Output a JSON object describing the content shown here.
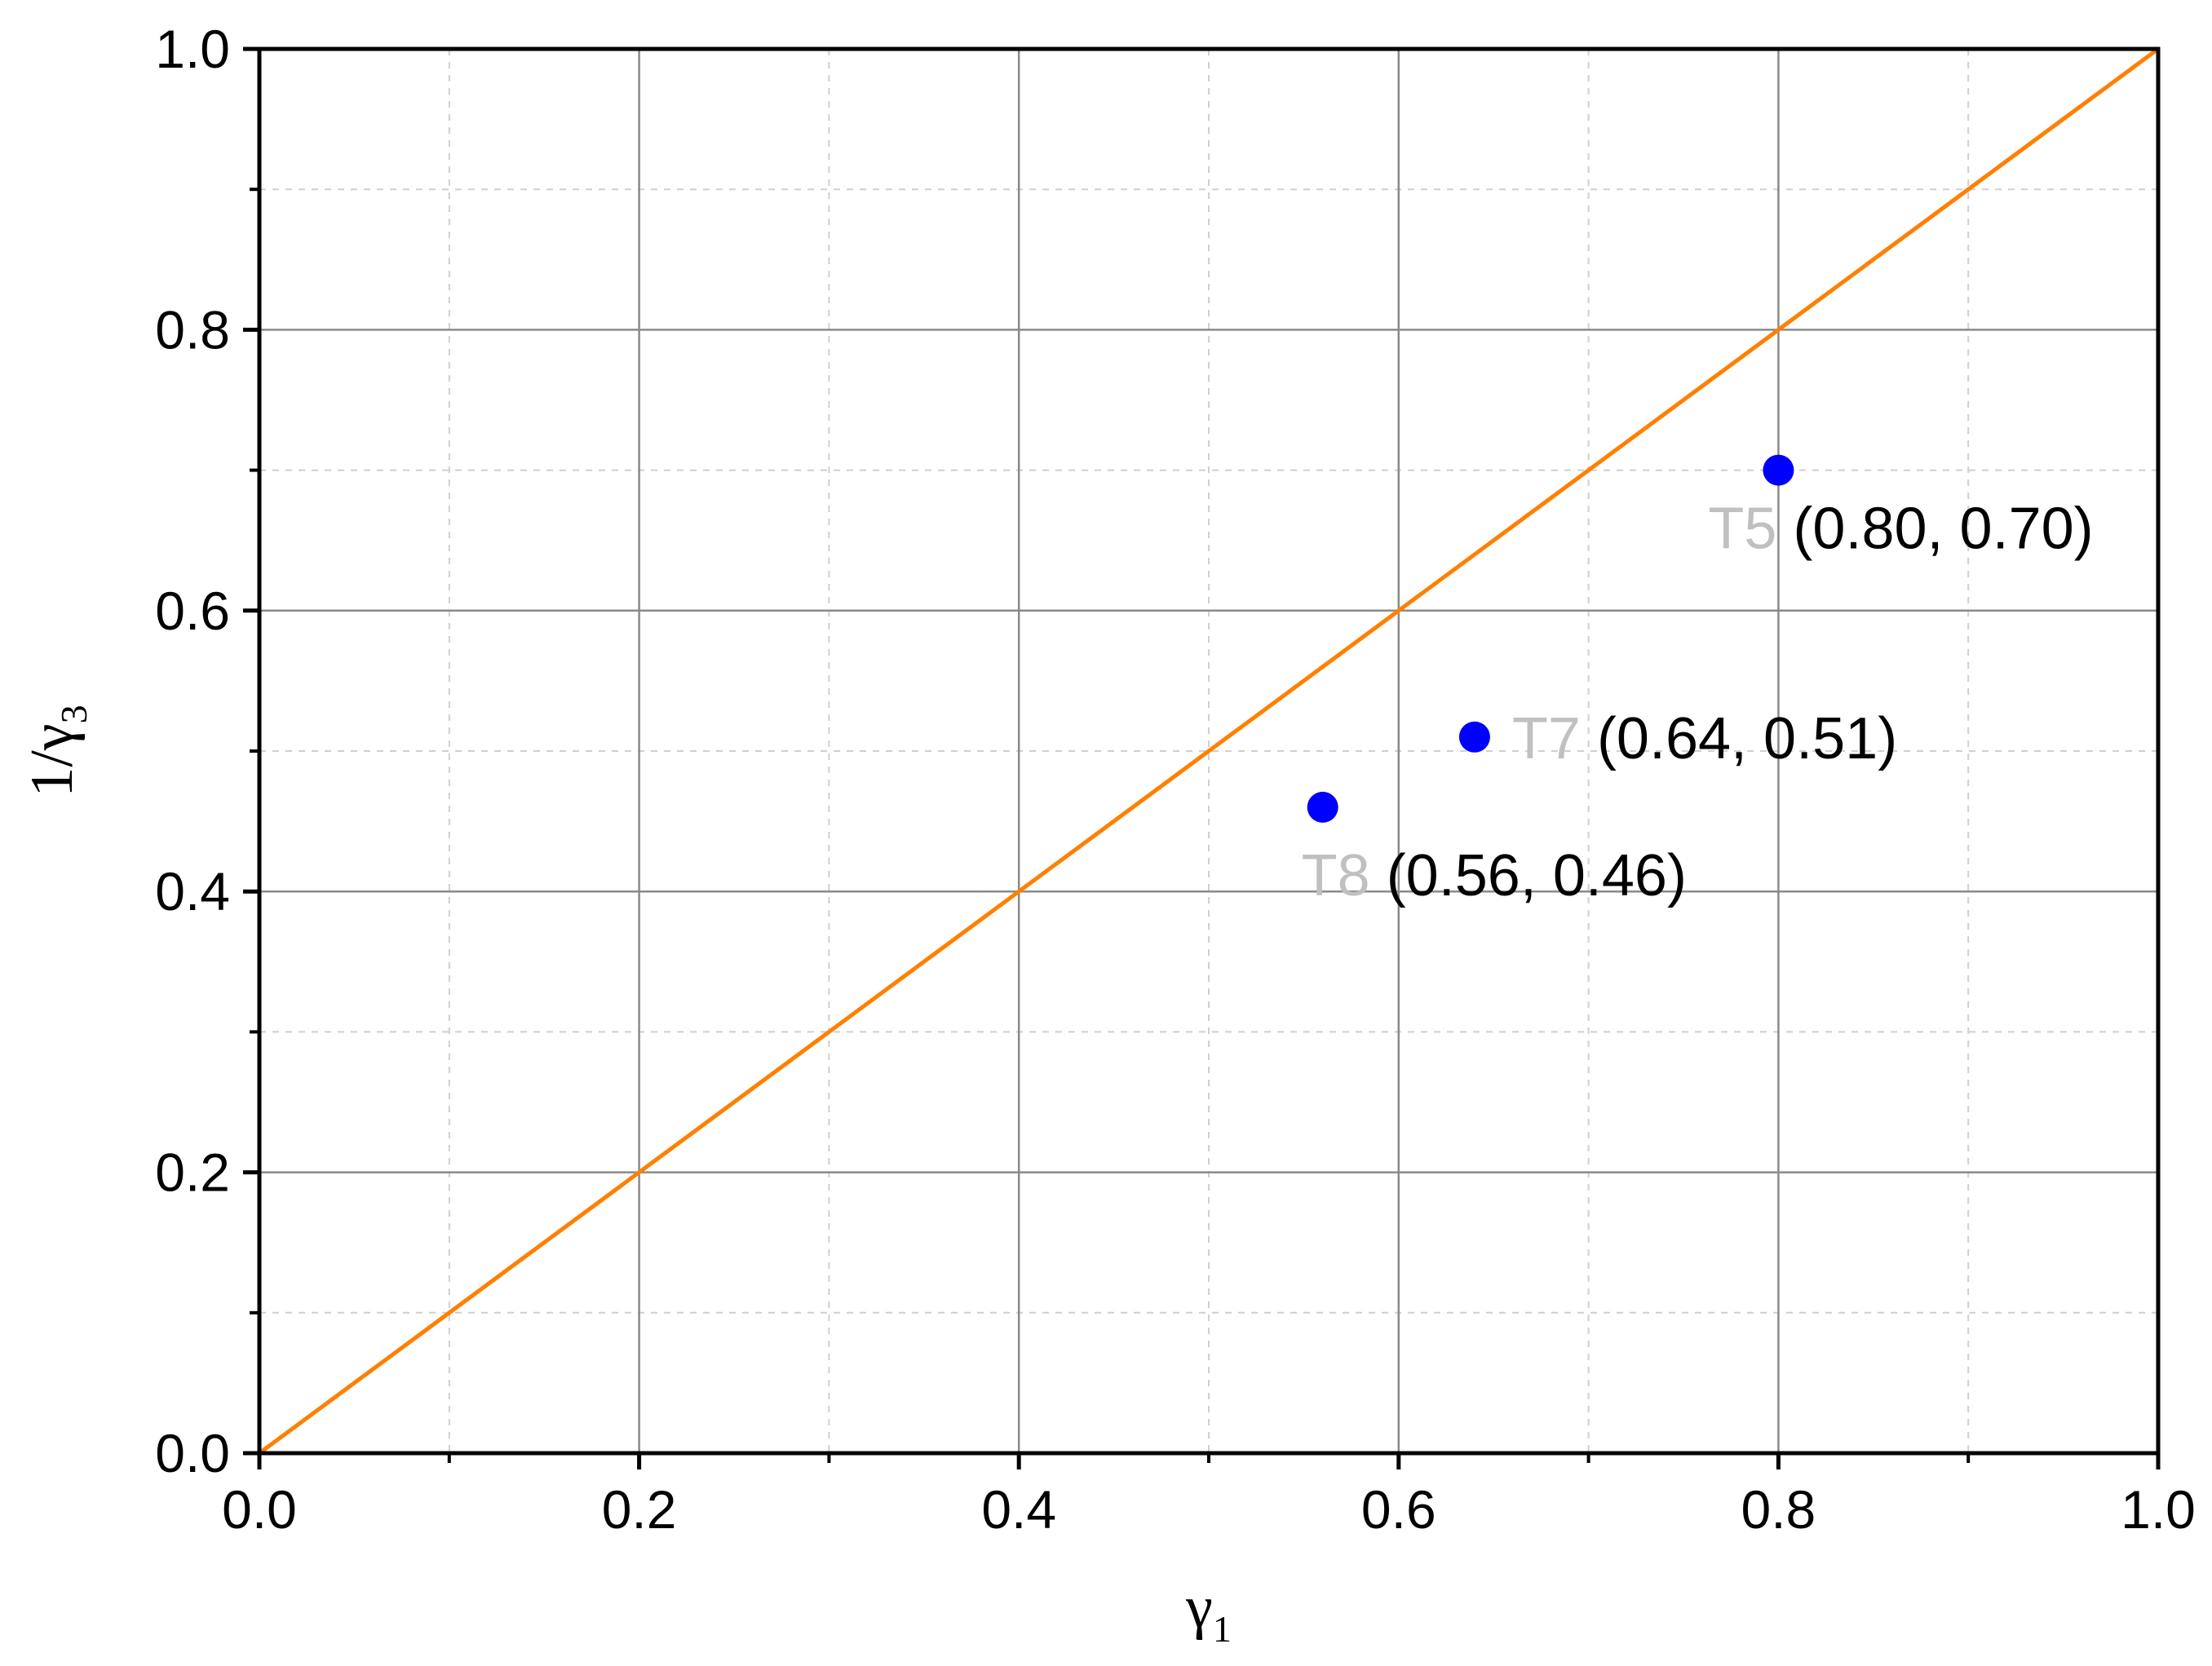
{
  "chart_data": {
    "type": "scatter",
    "title": "",
    "xlabel": {
      "base": "γ",
      "sub": "1"
    },
    "ylabel": {
      "prefix": "1/",
      "base": "γ",
      "sub": "3"
    },
    "xlim": [
      0.0,
      1.0
    ],
    "ylim": [
      0.0,
      1.0
    ],
    "x_ticks": [
      "0.0",
      "0.2",
      "0.4",
      "0.6",
      "0.8",
      "1.0"
    ],
    "y_ticks": [
      "0.0",
      "0.2",
      "0.4",
      "0.6",
      "0.8",
      "1.0"
    ],
    "x_tick_values": [
      0.0,
      0.2,
      0.4,
      0.6,
      0.8,
      1.0
    ],
    "y_tick_values": [
      0.0,
      0.2,
      0.4,
      0.6,
      0.8,
      1.0
    ],
    "minor_step": 0.1,
    "grid": true,
    "reference_line": {
      "x": [
        0.0,
        1.0
      ],
      "y": [
        0.0,
        1.0
      ],
      "color": "#ff8000"
    },
    "series": [
      {
        "color": "#0000ff",
        "points": [
          {
            "x": 0.8,
            "y": 0.7,
            "tag": "T5",
            "coord": "(0.80, 0.70)"
          },
          {
            "x": 0.64,
            "y": 0.51,
            "tag": "T7",
            "coord": "(0.64, 0.51)"
          },
          {
            "x": 0.56,
            "y": 0.46,
            "tag": "T8",
            "coord": "(0.56, 0.46)"
          }
        ]
      }
    ]
  }
}
